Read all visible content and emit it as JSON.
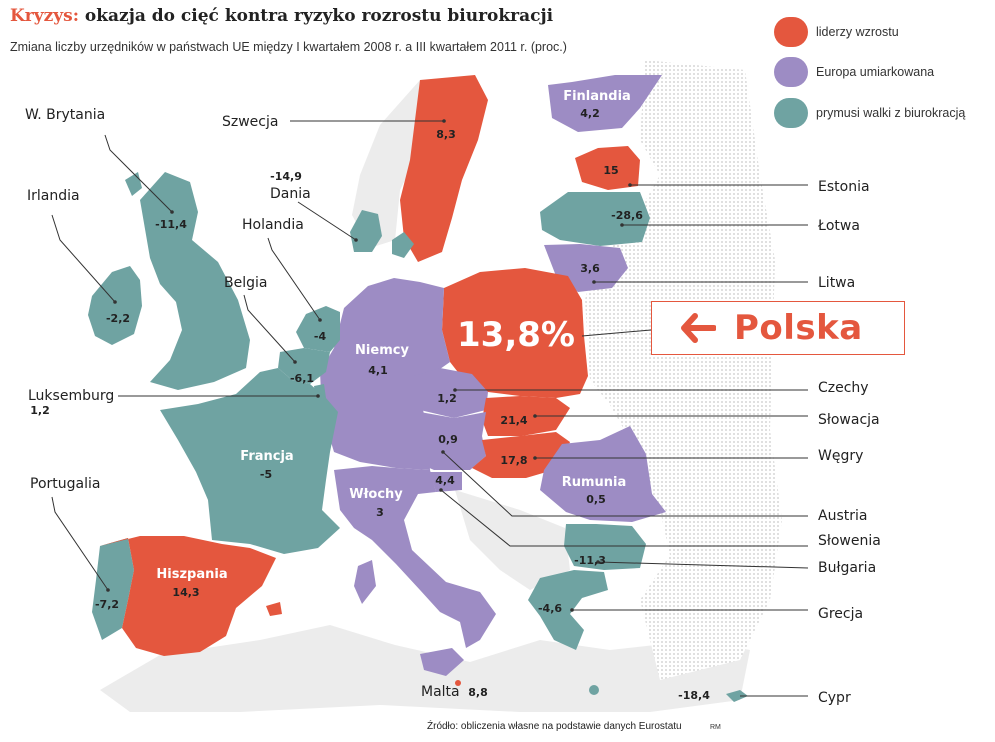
{
  "title": {
    "keyword": "Kryzys:",
    "rest": "okazja do cięć kontra ryzyko rozrostu biurokracji"
  },
  "subtitle": "Zmiana liczby urzędników w państwach UE między I kwartałem 2008 r. a III kwartałem 2011 r. (proc.)",
  "legend": [
    {
      "label": "liderzy wzrostu",
      "color": "#e4573e"
    },
    {
      "label": "Europa umiarkowana",
      "color": "#9d8cc4"
    },
    {
      "label": "prymusi walki z biurokracją",
      "color": "#6fa3a2"
    }
  ],
  "colors": {
    "red": "#e4573e",
    "purple": "#9d8cc4",
    "teal": "#6fa3a2",
    "land": "#ececec",
    "line": "#333333"
  },
  "callout": {
    "label": "Polska",
    "value": "13,8%"
  },
  "countries": {
    "wbrytania": {
      "name": "W. Brytania",
      "value": "-11,4"
    },
    "irlandia": {
      "name": "Irlandia",
      "value": "-2,2"
    },
    "szwecja": {
      "name": "Szwecja",
      "value": "8,3"
    },
    "finlandia": {
      "name": "Finlandia",
      "value": "4,2"
    },
    "dania": {
      "name": "Dania",
      "value": "-14,9"
    },
    "holandia": {
      "name": "Holandia",
      "value": "-4"
    },
    "belgia": {
      "name": "Belgia",
      "value": "-6,1"
    },
    "luksemburg": {
      "name": "Luksemburg",
      "value": "1,2"
    },
    "portugalia": {
      "name": "Portugalia",
      "value": "-7,2"
    },
    "francja": {
      "name": "Francja",
      "value": "-5"
    },
    "hiszpania": {
      "name": "Hiszpania",
      "value": "14,3"
    },
    "niemcy": {
      "name": "Niemcy",
      "value": "4,1"
    },
    "wlochy": {
      "name": "Włochy",
      "value": "3"
    },
    "estonia": {
      "name": "Estonia",
      "value": "15"
    },
    "lotwa": {
      "name": "Łotwa",
      "value": "-28,6"
    },
    "litwa": {
      "name": "Litwa",
      "value": "3,6"
    },
    "czechy": {
      "name": "Czechy",
      "value": "1,2"
    },
    "slowacja": {
      "name": "Słowacja",
      "value": "21,4"
    },
    "wegry": {
      "name": "Węgry",
      "value": "17,8"
    },
    "austria": {
      "name": "Austria",
      "value": "0,9"
    },
    "slowenia": {
      "name": "Słowenia",
      "value": "4,4"
    },
    "rumunia": {
      "name": "Rumunia",
      "value": "0,5"
    },
    "bulgaria": {
      "name": "Bułgaria",
      "value": "-11,3"
    },
    "grecja": {
      "name": "Grecja",
      "value": "-4,6"
    },
    "malta": {
      "name": "Malta",
      "value": "8,8"
    },
    "cypr": {
      "name": "Cypr",
      "value": "-18,4"
    }
  },
  "source": "Źródło: obliczenia własne na podstawie danych Eurostatu",
  "credit": "RM"
}
